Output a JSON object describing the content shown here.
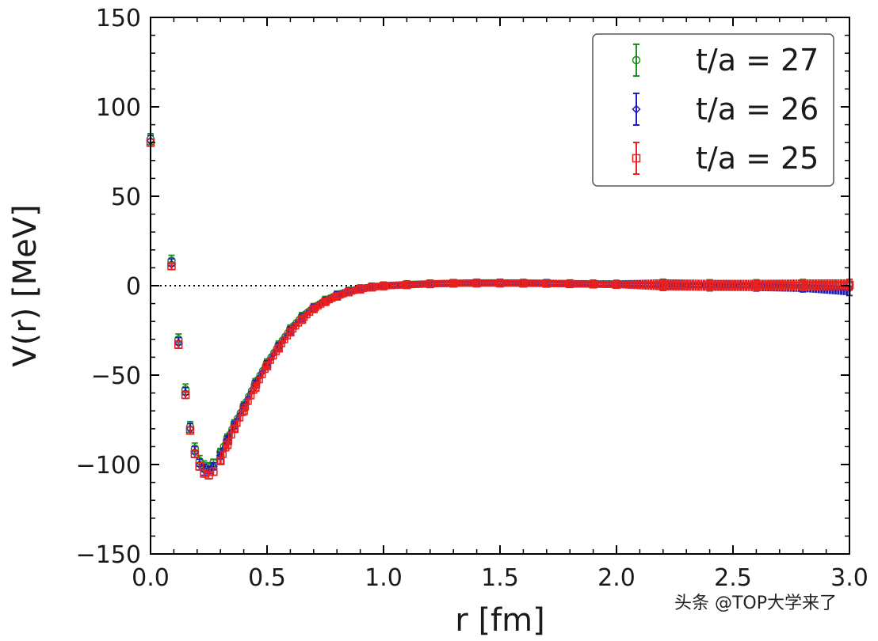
{
  "chart_data": {
    "type": "scatter",
    "title": "",
    "xlabel": "r [fm]",
    "ylabel": "V(r) [MeV]",
    "xlim": [
      0.0,
      3.0
    ],
    "ylim": [
      -150,
      150
    ],
    "xticks": [
      "0.0",
      "0.5",
      "1.0",
      "1.5",
      "2.0",
      "2.5",
      "3.0"
    ],
    "yticks": [
      "150",
      "100",
      "50",
      "0",
      "−50",
      "−100",
      "−150"
    ],
    "reference_line": {
      "y": 0,
      "style": "dotted"
    },
    "legend_position": "top-right",
    "series": [
      {
        "name": "t/a = 27",
        "color": "#1e8c1e",
        "marker": "circle",
        "x": [
          0.0,
          0.09,
          0.12,
          0.15,
          0.17,
          0.19,
          0.21,
          0.23,
          0.25,
          0.27,
          0.3,
          0.33,
          0.36,
          0.4,
          0.45,
          0.5,
          0.55,
          0.6,
          0.65,
          0.7,
          0.75,
          0.8,
          0.85,
          0.9,
          0.95,
          1.0,
          1.1,
          1.2,
          1.3,
          1.4,
          1.5,
          1.6,
          1.7,
          1.8,
          1.9,
          2.0,
          2.2,
          2.4,
          2.6,
          2.8,
          3.0
        ],
        "y": [
          82,
          14,
          -30,
          -58,
          -79,
          -91,
          -98,
          -101,
          -101,
          -99,
          -93,
          -85,
          -77,
          -67,
          -54,
          -43,
          -33,
          -24,
          -17,
          -12,
          -8,
          -5,
          -3,
          -1.6,
          -0.6,
          0,
          0.7,
          1.1,
          1.4,
          1.6,
          1.6,
          1.5,
          1.4,
          1.2,
          1.1,
          1.0,
          0.6,
          0.3,
          0.3,
          0.5,
          0.6
        ],
        "err": [
          3,
          3,
          3,
          3,
          3,
          3,
          3,
          3,
          2,
          2,
          2,
          2,
          2,
          2,
          2,
          2,
          2,
          2,
          2,
          2,
          2,
          2,
          2,
          2,
          2,
          2,
          2,
          2,
          2,
          2,
          2,
          2,
          2,
          2,
          2,
          2,
          3,
          3,
          3,
          3,
          3
        ]
      },
      {
        "name": "t/a = 26",
        "color": "#1c1cb8",
        "marker": "diamond",
        "x": [
          0.0,
          0.09,
          0.12,
          0.15,
          0.17,
          0.19,
          0.21,
          0.23,
          0.25,
          0.27,
          0.3,
          0.33,
          0.36,
          0.4,
          0.45,
          0.5,
          0.55,
          0.6,
          0.65,
          0.7,
          0.75,
          0.8,
          0.85,
          0.9,
          0.95,
          1.0,
          1.1,
          1.2,
          1.3,
          1.4,
          1.5,
          1.6,
          1.7,
          1.8,
          1.9,
          2.0,
          2.2,
          2.4,
          2.6,
          2.8,
          3.0
        ],
        "y": [
          81,
          12,
          -32,
          -60,
          -80,
          -93,
          -100,
          -103,
          -103,
          -101,
          -95,
          -86,
          -78,
          -68,
          -55,
          -44,
          -34,
          -25,
          -18,
          -12.5,
          -8.5,
          -5.5,
          -3.2,
          -1.8,
          -0.7,
          -0.1,
          0.5,
          1.0,
          1.3,
          1.5,
          1.5,
          1.4,
          1.3,
          1.1,
          0.9,
          0.8,
          0.4,
          0.1,
          0.0,
          -0.5,
          -1.5
        ],
        "err": [
          3,
          3,
          3,
          3,
          3,
          3,
          3,
          3,
          2,
          2,
          2,
          2,
          2,
          2,
          2,
          2,
          2,
          2,
          2,
          2,
          2,
          2,
          2,
          2,
          2,
          2,
          2,
          2,
          2,
          2,
          2,
          2,
          2,
          2,
          2,
          2,
          3,
          3,
          3,
          3,
          4
        ]
      },
      {
        "name": "t/a = 25",
        "color": "#e82020",
        "marker": "square",
        "x": [
          0.0,
          0.09,
          0.12,
          0.15,
          0.17,
          0.19,
          0.21,
          0.23,
          0.25,
          0.27,
          0.3,
          0.33,
          0.36,
          0.4,
          0.45,
          0.5,
          0.55,
          0.6,
          0.65,
          0.7,
          0.75,
          0.8,
          0.85,
          0.9,
          0.95,
          1.0,
          1.1,
          1.2,
          1.3,
          1.4,
          1.5,
          1.6,
          1.7,
          1.8,
          1.9,
          2.0,
          2.2,
          2.4,
          2.6,
          2.8,
          3.0
        ],
        "y": [
          80,
          11,
          -33,
          -61,
          -81,
          -94,
          -101,
          -105,
          -106,
          -104,
          -98,
          -89,
          -80,
          -70,
          -57,
          -45,
          -35,
          -26,
          -19,
          -13,
          -9,
          -6,
          -3.6,
          -2.0,
          -0.9,
          -0.2,
          0.5,
          1.0,
          1.3,
          1.4,
          1.4,
          1.3,
          1.2,
          1.0,
          0.8,
          0.6,
          0.3,
          0.2,
          0.2,
          0.3,
          0.5
        ],
        "err": [
          2,
          2,
          2,
          2,
          2,
          2,
          2,
          2,
          2,
          2,
          2,
          2,
          2,
          2,
          2,
          2,
          2,
          2,
          2,
          2,
          2,
          2,
          2,
          2,
          2,
          2,
          2,
          2,
          2,
          2,
          2,
          2,
          2,
          2,
          2,
          2,
          3,
          3,
          3,
          3,
          3
        ]
      }
    ]
  },
  "watermark": "头条 @TOP大学来了"
}
